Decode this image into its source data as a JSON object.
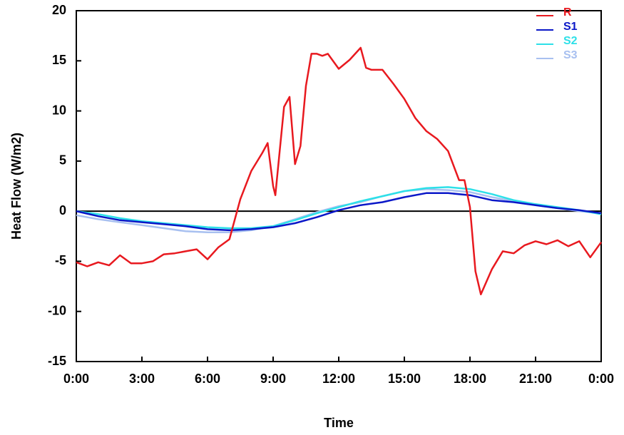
{
  "chart_data": {
    "type": "line",
    "y_label": "Heat Flow (W/m2)",
    "x_label": "Time",
    "xlim": [
      0,
      24
    ],
    "xticks": [
      {
        "value": 0,
        "label": "0:00"
      },
      {
        "value": 3,
        "label": "3:00"
      },
      {
        "value": 6,
        "label": "6:00"
      },
      {
        "value": 9,
        "label": "9:00"
      },
      {
        "value": 12,
        "label": "12:00"
      },
      {
        "value": 15,
        "label": "15:00"
      },
      {
        "value": 18,
        "label": "18:00"
      },
      {
        "value": 21,
        "label": "21:00"
      },
      {
        "value": 24,
        "label": "0:00"
      }
    ],
    "ylim": [
      -15,
      20
    ],
    "yticks": [
      -15,
      -10,
      -5,
      0,
      5,
      10,
      15,
      20
    ],
    "zero_line": true,
    "legend": "top-right",
    "series": [
      {
        "name": "R",
        "color": "#e8191f",
        "x": [
          0,
          0.5,
          1,
          1.5,
          2,
          2.5,
          3,
          3.5,
          4,
          4.5,
          5,
          5.5,
          6,
          6.5,
          7,
          7.5,
          8,
          8.5,
          8.75,
          9,
          9.1,
          9.5,
          9.75,
          10,
          10.25,
          10.5,
          10.75,
          11,
          11.25,
          11.5,
          12,
          12.5,
          13,
          13.25,
          13.5,
          14,
          14.5,
          15,
          15.5,
          16,
          16.5,
          17,
          17.5,
          17.75,
          18,
          18.25,
          18.5,
          19,
          19.5,
          20,
          20.5,
          21,
          21.5,
          22,
          22.5,
          23,
          23.5,
          24
        ],
        "values": [
          -5.1,
          -5.5,
          -5.1,
          -5.4,
          -4.4,
          -5.2,
          -5.2,
          -5.0,
          -4.3,
          -4.2,
          -4.0,
          -3.8,
          -4.8,
          -3.6,
          -2.8,
          1.2,
          4.0,
          5.8,
          6.8,
          2.5,
          1.6,
          10.4,
          11.4,
          4.7,
          6.5,
          12.5,
          15.7,
          15.7,
          15.5,
          15.7,
          14.2,
          15.1,
          16.3,
          14.3,
          14.1,
          14.1,
          12.7,
          11.2,
          9.3,
          8.0,
          7.2,
          6.0,
          3.1,
          3.1,
          0.4,
          -6.0,
          -8.3,
          -5.8,
          -4.0,
          -4.2,
          -3.4,
          -3.0,
          -3.3,
          -2.9,
          -3.5,
          -3.0,
          -4.6,
          -3.1
        ]
      },
      {
        "name": "S1",
        "color": "#0a17c8",
        "x": [
          0,
          1,
          2,
          3,
          4,
          5,
          6,
          7,
          8,
          9,
          10,
          11,
          12,
          13,
          14,
          15,
          16,
          17,
          18,
          19,
          20,
          21,
          22,
          23,
          24
        ],
        "values": [
          0,
          -0.5,
          -0.9,
          -1.1,
          -1.3,
          -1.5,
          -1.8,
          -1.9,
          -1.8,
          -1.6,
          -1.2,
          -0.6,
          0.1,
          0.6,
          0.9,
          1.4,
          1.8,
          1.8,
          1.6,
          1.1,
          0.9,
          0.6,
          0.3,
          0.1,
          -0.2
        ]
      },
      {
        "name": "S2",
        "color": "#2de0e8",
        "x": [
          0,
          1,
          2,
          3,
          4,
          5,
          6,
          7,
          8,
          9,
          10,
          11,
          12,
          13,
          14,
          15,
          16,
          17,
          18,
          19,
          20,
          21,
          22,
          23,
          24
        ],
        "values": [
          0,
          -0.3,
          -0.7,
          -1.0,
          -1.2,
          -1.4,
          -1.6,
          -1.7,
          -1.7,
          -1.5,
          -0.9,
          -0.2,
          0.4,
          1.0,
          1.5,
          2.0,
          2.3,
          2.4,
          2.2,
          1.7,
          1.1,
          0.7,
          0.4,
          0.1,
          -0.3
        ]
      },
      {
        "name": "S3",
        "color": "#a8c0f0",
        "x": [
          0,
          1,
          2,
          3,
          4,
          5,
          6,
          7,
          8,
          9,
          10,
          11,
          12,
          13,
          14,
          15,
          16,
          17,
          18,
          19,
          20,
          21,
          22,
          23,
          24
        ],
        "values": [
          -0.4,
          -0.8,
          -1.1,
          -1.4,
          -1.7,
          -2.0,
          -2.1,
          -2.1,
          -1.9,
          -1.5,
          -0.8,
          -0.1,
          0.5,
          0.9,
          1.5,
          2.0,
          2.2,
          2.1,
          1.9,
          1.4,
          1.0,
          0.6,
          0.3,
          0.0,
          -0.2
        ]
      }
    ]
  }
}
